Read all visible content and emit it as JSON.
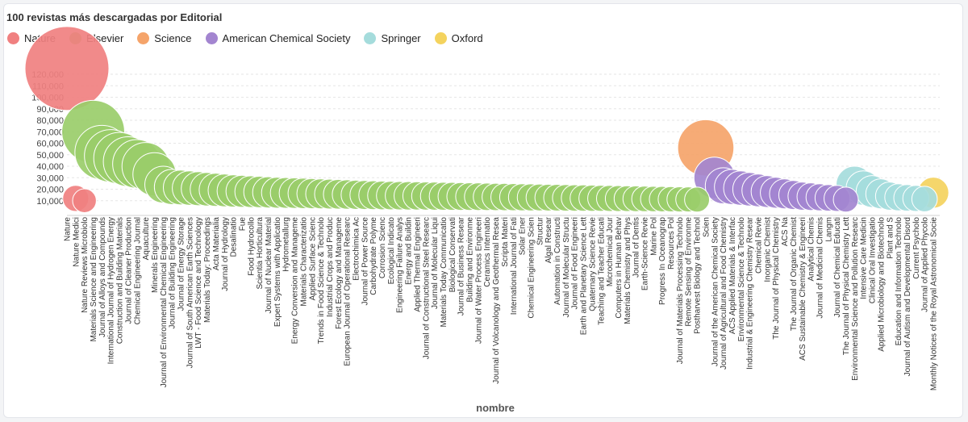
{
  "chart_data": {
    "type": "scatter",
    "title": "100 revistas más descargadas por Editorial",
    "xlabel": "nombre",
    "ylabel": "",
    "ylim": [
      0,
      130000
    ],
    "yticks": [
      10000,
      20000,
      30000,
      40000,
      50000,
      60000,
      70000,
      80000,
      90000,
      100000,
      110000,
      120000
    ],
    "ytick_labels": [
      "10,000",
      "20,000",
      "30,000",
      "40,000",
      "50,000",
      "60,000",
      "70,000",
      "80,000",
      "90,000",
      "100,000",
      "110,000",
      "120,000"
    ],
    "legend": [
      {
        "name": "Nature",
        "color": "#f08080"
      },
      {
        "name": "Elsevier",
        "color": "#9acd6a"
      },
      {
        "name": "Science",
        "color": "#f5a46a"
      },
      {
        "name": "American Chemical Society",
        "color": "#a385d0"
      },
      {
        "name": "Springer",
        "color": "#a5dcdc"
      },
      {
        "name": "Oxford",
        "color": "#f4d35e"
      }
    ],
    "categories": [
      "Nature",
      "Nature Medicine",
      "Nature Reviews Microbiology",
      "Materials Science and Engineering",
      "Journal of Alloys and Compounds",
      "International Journal of Hydrogen Energy",
      "Construction and Building Materials",
      "Journal of Cleaner Production",
      "Chemical Engineering Journal",
      "Aquaculture",
      "Minerals Engineering",
      "Journal of Environmental Chemical Engineering",
      "Journal of Building Engineering",
      "Journal of Energy Storage",
      "Journal of South American Earth Sciences",
      "LWT - Food Science and Technology",
      "Materials Today: Proceedings",
      "Acta Materialia",
      "Journal of Hydrology",
      "Desalination",
      "Fuel",
      "Food Hydrocolloids",
      "Scientia Horticulturae",
      "Journal of Nuclear Materials",
      "Expert Systems with Applications",
      "Hydrometallurgy",
      "Energy Conversion and Management",
      "Materials Characterization",
      "Applied Surface Science",
      "Trends in Food Science & Technology",
      "Industrial Crops and Products",
      "Forest Ecology and Management",
      "European Journal of Operational Research",
      "Electrochimica Acta",
      "Journal of Power Sources",
      "Carbohydrate Polymers",
      "Corrosion Science",
      "Ecological Indicators",
      "Engineering Failure Analysis",
      "Energy and Buildings",
      "Applied Thermal Engineering",
      "Journal of Constructional Steel Research",
      "Journal of Molecular Liquids",
      "Materials Today Communications",
      "Biological Conservation",
      "Journal of Business Research",
      "Building and Environment",
      "Journal of Water Process Engineering",
      "Ceramics International",
      "Journal of Volcanology and Geothermal Research",
      "Scripta Materialia",
      "International Journal of Fatigue",
      "Solar Energy",
      "Chemical Engineering Science",
      "Structures",
      "Algal Research",
      "Automation in Construction",
      "Journal of Molecular Structure",
      "Journal of Food Engineering",
      "Earth and Planetary Science Letters",
      "Quaternary Science Reviews",
      "Teaching and Teacher Education",
      "Microchemical Journal",
      "Computers in Human Behavior",
      "Materials Chemistry and Physics",
      "Journal of Dentistry",
      "Earth-Science Reviews",
      "Marine Policy",
      "Progress In Oceanography",
      "Resources Policy",
      "Journal of Materials Processing Technology",
      "Remote Sensing of Environment",
      "Postharvest Biology and Technology",
      "Science",
      "Journal of the American Chemical Society",
      "Journal of Agricultural and Food Chemistry",
      "ACS Applied Materials & Interfaces",
      "Environmental Science & Technology",
      "Industrial & Engineering Chemistry Research",
      "Chemical Reviews",
      "Inorganic Chemistry",
      "The Journal of Physical Chemistry C",
      "ACS Nano",
      "The Journal of Organic Chemistry",
      "ACS Sustainable Chemistry & Engineering",
      "Analytical Chemistry",
      "Journal of Medicinal Chemistry",
      "Langmuir",
      "Journal of Chemical Education",
      "The Journal of Physical Chemistry Letters",
      "Environmental Science and Pollution Research",
      "Intensive Care Medicine",
      "Clinical Oral Investigations",
      "Applied Microbiology and Biotechnology",
      "Plant and Soil",
      "Education and Information Technologies",
      "Journal of Autism and Developmental Disorders",
      "Current Psychology",
      "Journal of Applied Phycology",
      "Monthly Notices of the Royal Astronomical Society"
    ],
    "tick_labels": [
      "Nature",
      "Nature Medici",
      "Nature Reviews Microbiolo",
      "Materials Science and Engineering",
      "Journal of Alloys and Compounds",
      "International Journal of Hydrogen Energy",
      "Construction and Building Materials",
      "Journal of Cleaner Production",
      "Chemical Engineering Journal",
      "Aquaculture",
      "Minerals Engineering",
      "Journal of Environmental Chemical Engineering",
      "Journal of Building Engineering",
      "Journal of Energy Storage",
      "Journal of South American Earth Sciences",
      "LWT - Food Science and Technology",
      "Materials Today: Proceedings",
      "Acta Materialia",
      "Journal of Hydrology",
      "Desalinatio",
      "Fue",
      "Food Hydrocollo",
      "Scientia Horticultura",
      "Journal of Nuclear Material",
      "Expert Systems with Applicatio",
      "Hydrometallurg",
      "Energy Conversion and Manageme",
      "Materials Characterizatio",
      "Applied Surface Scienc",
      "Trends in Food Science & Technolo",
      "Industrial Crops and Produc",
      "Forest Ecology and Manageme",
      "European Journal of Operational Researc",
      "Electrochimica Ac",
      "Journal of Power Source",
      "Carbohydrate Polyme",
      "Corrosion Scienc",
      "Ecological Indicato",
      "Engineering Failure Analys",
      "Energy and Buildin",
      "Applied Thermal Engineeri",
      "Journal of Constructional Steel Researc",
      "Journal of Molecular Liqui",
      "Materials Today Communicatio",
      "Biological Conservati",
      "Journal of Business Resear",
      "Building and Environme",
      "Journal of Water Process Engineeri",
      "Ceramics Internatio",
      "Journal of Volcanology and Geothermal Resea",
      "Scripta Materi",
      "International Journal of Fati",
      "Solar Ener",
      "Chemical Engineering Scien",
      "Structur",
      "Algal Resear",
      "Automation in Constructi",
      "Journal of Molecular Structu",
      "Journal of Food Engineeri",
      "Earth and Planetary Science Lett",
      "Quaternary Science Revie",
      "Teaching and Teacher Educati",
      "Microchemical Jour",
      "Computers in Human Behav",
      "Materials Chemistry and Phys",
      "Journal of Dentis",
      "Earth-Science Revie",
      "Marine Pol",
      "Progress In Oceanograp",
      "Resources Pol",
      "Journal of Materials Processing Technolo",
      "Remote Sensing of Environme",
      "Postharvest Biology and Technol",
      "Scien",
      "Journal of the American Chemical Society",
      "Journal of Agricultural and Food Chemistry",
      "ACS Applied Materials & Interfac",
      "Environmental Science & Technolo",
      "Industrial & Engineering Chemistry Resear",
      "Chemical Revie",
      "Inorganic Chemist",
      "The Journal of Physical Chemistry",
      "ACS Na",
      "The Journal of Organic Chemist",
      "ACS Sustainable Chemistry & Engineeri",
      "Analytical Chemis",
      "Journal of Medicinal Chemis",
      "Langm",
      "Journal of Chemical Educati",
      "The Journal of Physical Chemistry Lett",
      "Environmental Science and Pollution Researc",
      "Intensive Care Medicin",
      "Clinical Oral Investigatio",
      "Applied Microbiology and Biotechnolo",
      "Plant and S",
      "Education and Information Technolo",
      "Journal of Autism and Developmental Disord",
      "Current Psycholo",
      "Journal of Applied Phycolo",
      "Monthly Notices of the Royal Astronomical Socie"
    ],
    "publishers": [
      "Nature",
      "Nature",
      "Nature",
      "Elsevier",
      "Elsevier",
      "Elsevier",
      "Elsevier",
      "Elsevier",
      "Elsevier",
      "Elsevier",
      "Elsevier",
      "Elsevier",
      "Elsevier",
      "Elsevier",
      "Elsevier",
      "Elsevier",
      "Elsevier",
      "Elsevier",
      "Elsevier",
      "Elsevier",
      "Elsevier",
      "Elsevier",
      "Elsevier",
      "Elsevier",
      "Elsevier",
      "Elsevier",
      "Elsevier",
      "Elsevier",
      "Elsevier",
      "Elsevier",
      "Elsevier",
      "Elsevier",
      "Elsevier",
      "Elsevier",
      "Elsevier",
      "Elsevier",
      "Elsevier",
      "Elsevier",
      "Elsevier",
      "Elsevier",
      "Elsevier",
      "Elsevier",
      "Elsevier",
      "Elsevier",
      "Elsevier",
      "Elsevier",
      "Elsevier",
      "Elsevier",
      "Elsevier",
      "Elsevier",
      "Elsevier",
      "Elsevier",
      "Elsevier",
      "Elsevier",
      "Elsevier",
      "Elsevier",
      "Elsevier",
      "Elsevier",
      "Elsevier",
      "Elsevier",
      "Elsevier",
      "Elsevier",
      "Elsevier",
      "Elsevier",
      "Elsevier",
      "Elsevier",
      "Elsevier",
      "Elsevier",
      "Elsevier",
      "Elsevier",
      "Elsevier",
      "Elsevier",
      "Elsevier",
      "Science",
      "American Chemical Society",
      "American Chemical Society",
      "American Chemical Society",
      "American Chemical Society",
      "American Chemical Society",
      "American Chemical Society",
      "American Chemical Society",
      "American Chemical Society",
      "American Chemical Society",
      "American Chemical Society",
      "American Chemical Society",
      "American Chemical Society",
      "American Chemical Society",
      "American Chemical Society",
      "American Chemical Society",
      "American Chemical Society",
      "Springer",
      "Springer",
      "Springer",
      "Springer",
      "Springer",
      "Springer",
      "Springer",
      "Springer",
      "Springer",
      "Oxford"
    ],
    "values": [
      125000,
      12000,
      10000,
      70000,
      52000,
      49000,
      47000,
      44000,
      42000,
      40000,
      33000,
      24000,
      22000,
      21500,
      21000,
      20500,
      20000,
      19500,
      19000,
      18500,
      18200,
      17900,
      17600,
      17300,
      17000,
      16800,
      16600,
      16400,
      16200,
      16000,
      15800,
      15600,
      15400,
      15200,
      15000,
      14800,
      14600,
      14500,
      14400,
      14300,
      14200,
      14100,
      14000,
      13900,
      13800,
      13700,
      13600,
      13500,
      13400,
      13300,
      13200,
      13100,
      13000,
      12900,
      12800,
      12700,
      12600,
      12500,
      12400,
      12300,
      12200,
      12100,
      12000,
      11900,
      11800,
      11700,
      11600,
      11500,
      11400,
      11300,
      11200,
      11100,
      11000,
      56000,
      30000,
      23000,
      22000,
      21000,
      20000,
      19000,
      18000,
      17000,
      16000,
      15000,
      14000,
      13500,
      13000,
      12500,
      12000,
      11000,
      24000,
      21000,
      18000,
      16000,
      14000,
      13000,
      12500,
      12000,
      11500,
      17000
    ]
  }
}
